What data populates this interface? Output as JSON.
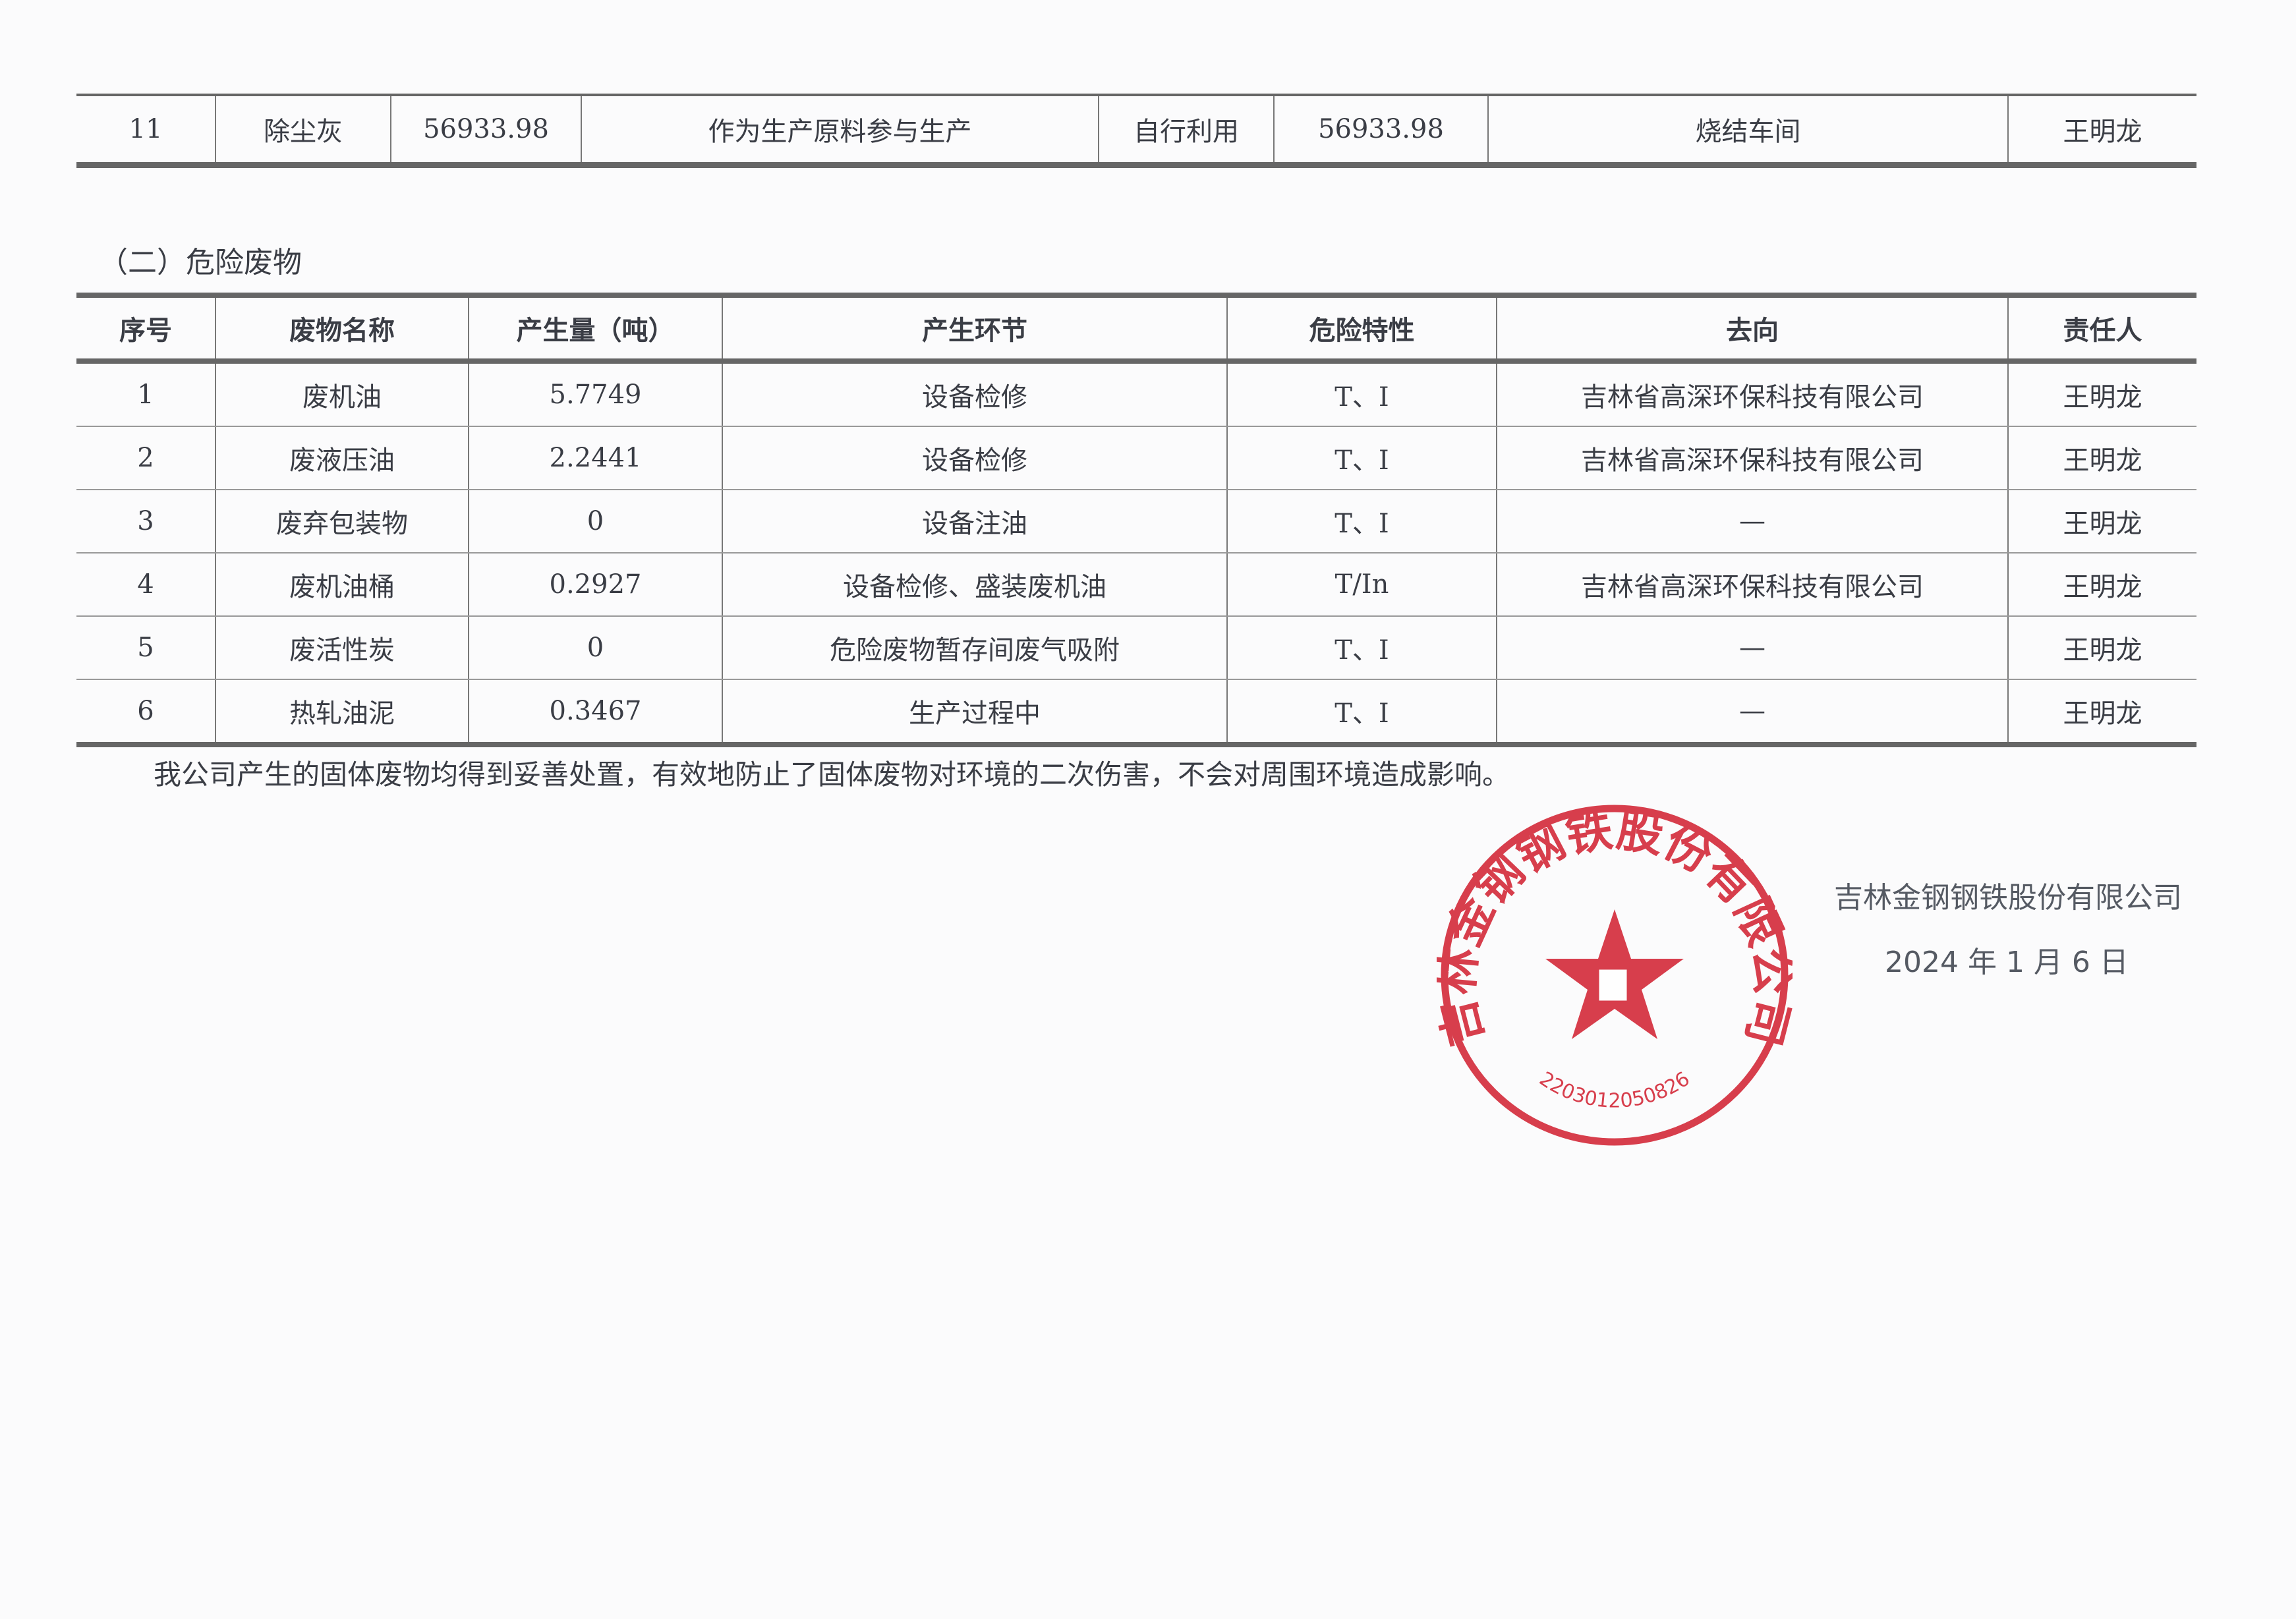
{
  "solid_waste_last_row": {
    "no": "11",
    "name": "除尘灰",
    "amount": "56933.98",
    "usage": "作为生产原料参与生产",
    "method": "自行利用",
    "amount2": "56933.98",
    "location": "烧结车间",
    "person": "王明龙"
  },
  "hazardous": {
    "heading": "（二）危险废物",
    "headers": [
      "序号",
      "废物名称",
      "产生量（吨）",
      "产生环节",
      "危险特性",
      "去向",
      "责任人"
    ],
    "rows": [
      [
        "1",
        "废机油",
        "5.7749",
        "设备检修",
        "T、I",
        "吉林省高深环保科技有限公司",
        "王明龙"
      ],
      [
        "2",
        "废液压油",
        "2.2441",
        "设备检修",
        "T、I",
        "吉林省高深环保科技有限公司",
        "王明龙"
      ],
      [
        "3",
        "废弃包装物",
        "0",
        "设备注油",
        "T、I",
        "—",
        "王明龙"
      ],
      [
        "4",
        "废机油桶",
        "0.2927",
        "设备检修、盛装废机油",
        "T/In",
        "吉林省高深环保科技有限公司",
        "王明龙"
      ],
      [
        "5",
        "废活性炭",
        "0",
        "危险废物暂存间废气吸附",
        "T、I",
        "—",
        "王明龙"
      ],
      [
        "6",
        "热轧油泥",
        "0.3467",
        "生产过程中",
        "T、I",
        "—",
        "王明龙"
      ]
    ]
  },
  "statement": "我公司产生的固体废物均得到妥善处置，有效地防止了固体废物对环境的二次伤害，不会对周围环境造成影响。",
  "signature": {
    "company": "吉林金钢钢铁股份有限公司",
    "date": "2024 年 1 月 6 日"
  },
  "stamp": {
    "name": "吉林金钢钢铁股份有限公司",
    "code": "2203012050826",
    "color": "#d42a3a"
  }
}
